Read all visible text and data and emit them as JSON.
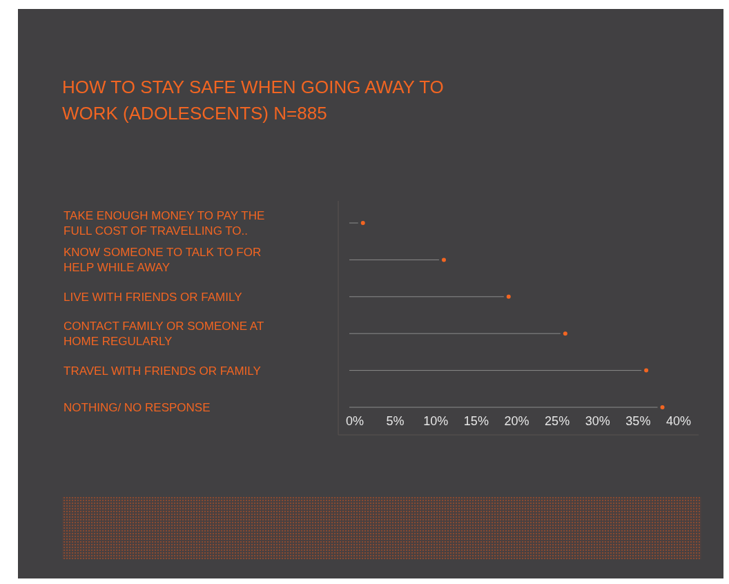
{
  "chart_data": {
    "type": "lollipop",
    "orientation": "horizontal",
    "title": "HOW TO STAY SAFE WHEN GOING AWAY TO WORK (ADOLESCENTS) N=885",
    "categories": [
      "TAKE ENOUGH MONEY TO PAY THE FULL COST OF TRAVELLING TO..",
      "KNOW SOMEONE TO TALK TO FOR HELP WHILE AWAY",
      "LIVE WITH FRIENDS OR FAMILY",
      "CONTACT FAMILY OR SOMEONE AT HOME REGULARLY",
      "TRAVEL WITH FRIENDS OR FAMILY",
      "NOTHING/ NO RESPONSE"
    ],
    "values": [
      1,
      11,
      19,
      26,
      36,
      38
    ],
    "color": "#f26522",
    "xlim": [
      0,
      40
    ],
    "xticks": [
      {
        "value": 0,
        "label": "0%"
      },
      {
        "value": 5,
        "label": "5%"
      },
      {
        "value": 10,
        "label": "10%"
      },
      {
        "value": 15,
        "label": "15%"
      },
      {
        "value": 20,
        "label": "20%"
      },
      {
        "value": 25,
        "label": "25%"
      },
      {
        "value": 30,
        "label": "30%"
      },
      {
        "value": 35,
        "label": "35%"
      },
      {
        "value": 40,
        "label": "40%"
      }
    ],
    "marker": "circle"
  }
}
